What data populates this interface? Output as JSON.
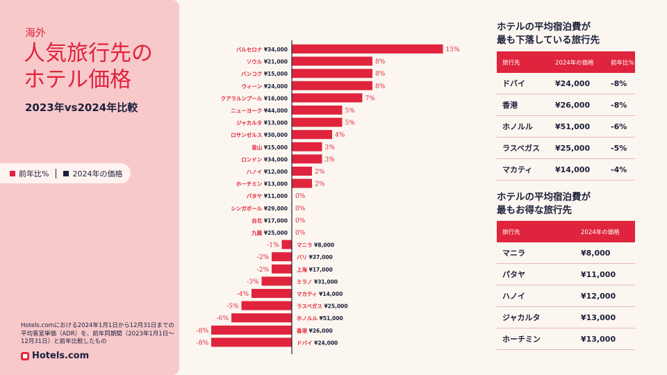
{
  "header": {
    "kicker": "海外",
    "title": "人気旅行先のホテル価格",
    "subtitle": "2023年vs2024年比較"
  },
  "legend": {
    "items": [
      {
        "label": "前年比%",
        "color": "#e0243d"
      },
      {
        "label": "2024年の価格",
        "color": "#1b1f3b"
      }
    ]
  },
  "footnote": "Hotels.comにおける2024年1月1日から12月31日までの平均客室単価（ADR）を、前年同期間（2023年1月1日〜12月31日）と前年比較したもの",
  "brand": "Hotels.com",
  "colors": {
    "accent": "#e0243d",
    "dark": "#1b1f3b",
    "panel": "#f8c9cb",
    "bg": "#fbf6ef"
  },
  "chart_data": {
    "type": "bar",
    "orientation": "horizontal",
    "categories": [
      "バルセロナ",
      "ソウル",
      "バンコク",
      "ウィーン",
      "クアラルンプール",
      "ニューヨーク",
      "ジャカルタ",
      "ロサンゼルス",
      "釜山",
      "ロンドン",
      "ハノイ",
      "ホーチミン",
      "パタヤ",
      "シンガポール",
      "台北",
      "九龍",
      "マニラ",
      "バリ",
      "上海",
      "ミラノ",
      "マカティ",
      "ラスベガス",
      "ホノルル",
      "香港",
      "ドバイ"
    ],
    "prices": [
      "¥34,000",
      "¥21,000",
      "¥15,000",
      "¥24,000",
      "¥16,000",
      "¥44,000",
      "¥13,000",
      "¥30,000",
      "¥15,000",
      "¥34,000",
      "¥12,000",
      "¥13,000",
      "¥11,000",
      "¥29,000",
      "¥17,000",
      "¥25,000",
      "¥8,000",
      "¥37,000",
      "¥17,000",
      "¥31,000",
      "¥14,000",
      "¥25,000",
      "¥51,000",
      "¥26,000",
      "¥24,000"
    ],
    "values": [
      15,
      8,
      8,
      8,
      7,
      5,
      5,
      4,
      3,
      3,
      2,
      2,
      0,
      0,
      0,
      0,
      -1,
      -2,
      -2,
      -3,
      -4,
      -5,
      -6,
      -8,
      -8
    ],
    "value_labels": [
      "15%",
      "8%",
      "8%",
      "8%",
      "7%",
      "5%",
      "5%",
      "4%",
      "3%",
      "3%",
      "2%",
      "2%",
      "0%",
      "0%",
      "0%",
      "0%",
      "-1%",
      "-2%",
      "-2%",
      "-3%",
      "-4%",
      "-5%",
      "-6%",
      "-8%",
      "-8%"
    ],
    "xlim": [
      -8,
      15
    ],
    "series_name": "前年比%"
  },
  "table_down": {
    "title_line1": "ホテルの平均宿泊費が",
    "title_line2": "最も下落している旅行先",
    "headers": [
      "旅行先",
      "2024年の価格",
      "前年比%"
    ],
    "rows": [
      [
        "ドバイ",
        "¥24,000",
        "-8%"
      ],
      [
        "香港",
        "¥26,000",
        "-8%"
      ],
      [
        "ホノルル",
        "¥51,000",
        "-6%"
      ],
      [
        "ラスベガス",
        "¥25,000",
        "-5%"
      ],
      [
        "マカティ",
        "¥14,000",
        "-4%"
      ]
    ]
  },
  "table_value": {
    "title_line1": "ホテルの平均宿泊費が",
    "title_line2": "最もお得な旅行先",
    "headers": [
      "旅行先",
      "2024年の価格"
    ],
    "rows": [
      [
        "マニラ",
        "¥8,000"
      ],
      [
        "パタヤ",
        "¥11,000"
      ],
      [
        "ハノイ",
        "¥12,000"
      ],
      [
        "ジャカルタ",
        "¥13,000"
      ],
      [
        "ホーチミン",
        "¥13,000"
      ]
    ]
  }
}
